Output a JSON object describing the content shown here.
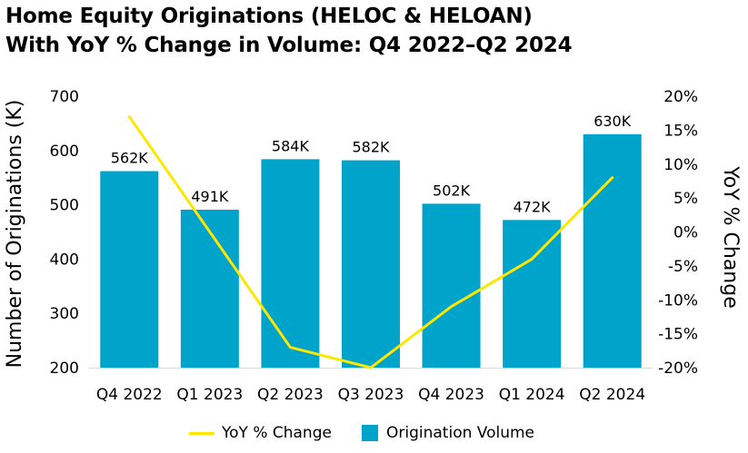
{
  "chart_data": {
    "type": "bar",
    "title_lines": [
      "Home Equity Originations (HELOC & HELOAN)",
      "With YoY % Change in Volume: Q4 2022–Q2 2024"
    ],
    "categories": [
      "Q4 2022",
      "Q1 2023",
      "Q2 2023",
      "Q3 2023",
      "Q4 2023",
      "Q1 2024",
      "Q2 2024"
    ],
    "series": [
      {
        "name": "Origination Volume",
        "type": "bar",
        "axis": "left",
        "values": [
          562,
          491,
          584,
          582,
          502,
          472,
          630
        ],
        "data_labels": [
          "562K",
          "491K",
          "584K",
          "582K",
          "502K",
          "472K",
          "630K"
        ],
        "color": "#00A3C9"
      },
      {
        "name": "YoY % Change",
        "type": "line",
        "axis": "right",
        "values": [
          17,
          0,
          -17,
          -20,
          -11,
          -4,
          8
        ],
        "color": "#FFE600"
      }
    ],
    "ylabel": "Number of Originations (K)",
    "y2label": "YoY % Change",
    "ylim": [
      200,
      700
    ],
    "yticks": [
      "700",
      "600",
      "500",
      "400",
      "300",
      "200"
    ],
    "y2lim": [
      -20,
      20
    ],
    "y2ticks": [
      "20%",
      "15%",
      "10%",
      "5%",
      "0%",
      "-5%",
      "-10%",
      "-15%",
      "-20%"
    ],
    "grid": false,
    "legend_position": "bottom"
  }
}
